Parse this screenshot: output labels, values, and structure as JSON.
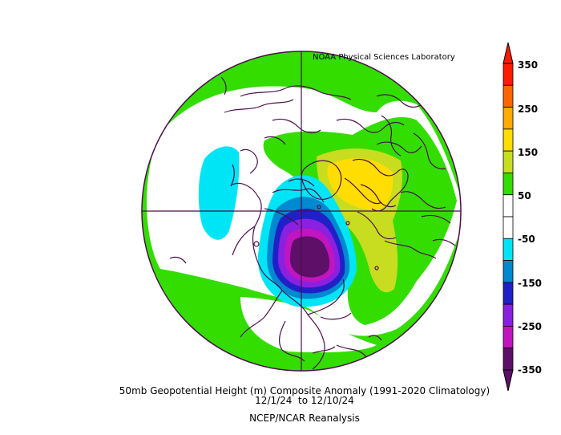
{
  "credit": "NOAA Physical Sciences Laboratory",
  "caption": {
    "line1": "50mb Geopotential Height (m) Composite Anomaly (1991-2020 Climatology)",
    "line2": "12/1/24  to 12/10/24",
    "line3": "NCEP/NCAR Reanalysis"
  },
  "colorbar": {
    "ticks": [
      "350",
      "250",
      "150",
      "50",
      "-50",
      "-150",
      "-250",
      "-350"
    ],
    "bins": [
      {
        "range": "300 to 350",
        "color": "#ff1a00"
      },
      {
        "range": "250 to 300",
        "color": "#ff6600"
      },
      {
        "range": "200 to 250",
        "color": "#ffaa00"
      },
      {
        "range": "150 to 200",
        "color": "#ffdd00"
      },
      {
        "range": "100 to 150",
        "color": "#c8dc20"
      },
      {
        "range": "50 to 100",
        "color": "#33dd00"
      },
      {
        "range": "0 to 50",
        "color": "#ffffff"
      },
      {
        "range": "-50 to 0",
        "color": "#ffffff"
      },
      {
        "range": "-100 to -50",
        "color": "#00e5f5"
      },
      {
        "range": "-150 to -100",
        "color": "#0088d0"
      },
      {
        "range": "-200 to -150",
        "color": "#2020c8"
      },
      {
        "range": "-250 to -200",
        "color": "#8a20e0"
      },
      {
        "range": "-300 to -250",
        "color": "#c015c0"
      },
      {
        "range": "-350 to -300",
        "color": "#5e0f68"
      }
    ]
  },
  "map": {
    "projection": "north-polar-stereographic",
    "background_color": "#ffffff",
    "coast_color": "#4a0f4a"
  }
}
